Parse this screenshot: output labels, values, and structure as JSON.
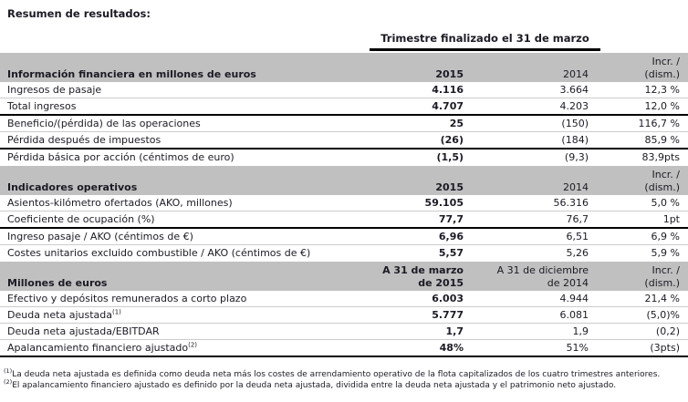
{
  "page_title": "Resumen de resultados:",
  "quarter_header": "Trimestre finalizado el 31 de marzo",
  "colors": {
    "band_gray": "#c0c0c0",
    "text": "#1b1b25",
    "separator_light": "#cccccc",
    "separator_dark": "#000000"
  },
  "sections": [
    {
      "header": {
        "label": "Información financiera en millones de euros",
        "c2015": [
          "2015"
        ],
        "c2014": [
          "2014"
        ],
        "cincr": [
          "Incr. /",
          "(dism.)"
        ]
      },
      "rows": [
        {
          "label": "Ingresos de pasaje",
          "v2015": "4.116",
          "v2014": "3.664",
          "incr": "12,3 %"
        },
        {
          "label": "Total ingresos",
          "v2015": "4.707",
          "v2014": "4.203",
          "incr": "12,0 %"
        },
        {
          "label": "Beneficio/(pérdida) de las operaciones",
          "v2015": "25",
          "v2014": "(150)",
          "incr": "116,7 %"
        },
        {
          "label": "Pérdida después de impuestos",
          "v2015": "(26)",
          "v2014": "(184)",
          "incr": "85,9 %"
        },
        {
          "label": "Pérdida básica por acción (céntimos de euro)",
          "v2015": "(1,5)",
          "v2014": "(9,3)",
          "incr": "83,9pts"
        }
      ]
    },
    {
      "header": {
        "label": "Indicadores operativos",
        "c2015": [
          "2015"
        ],
        "c2014": [
          "2014"
        ],
        "cincr": [
          "Incr. /",
          "(dism.)"
        ]
      },
      "rows": [
        {
          "label": "Asientos-kilómetro ofertados (AKO, millones)",
          "v2015": "59.105",
          "v2014": "56.316",
          "incr": "5,0 %"
        },
        {
          "label": "Coeficiente de ocupación (%)",
          "v2015": "77,7",
          "v2014": "76,7",
          "incr": "1pt"
        },
        {
          "label": "Ingreso pasaje / AKO (céntimos de €)",
          "v2015": "6,96",
          "v2014": "6,51",
          "incr": "6,9 %"
        },
        {
          "label": "Costes unitarios excluido combustible / AKO (céntimos de €)",
          "v2015": "5,57",
          "v2014": "5,26",
          "incr": "5,9 %"
        }
      ]
    },
    {
      "header": {
        "label": "Millones de euros",
        "c2015": [
          "A 31 de marzo",
          "de 2015"
        ],
        "c2014": [
          "A 31 de diciembre",
          "de 2014"
        ],
        "cincr": [
          "Incr. /",
          "(dism.)"
        ]
      },
      "rows": [
        {
          "label": "Efectivo y depósitos remunerados a corto plazo",
          "v2015": "6.003",
          "v2014": "4.944",
          "incr": "21,4 %"
        },
        {
          "label": "Deuda neta ajustada",
          "sup": "(1)",
          "v2015": "5.777",
          "v2014": "6.081",
          "incr": "(5,0)%"
        },
        {
          "label": "Deuda neta ajustada/EBITDAR",
          "v2015": "1,7",
          "v2014": "1,9",
          "incr": "(0,2)"
        },
        {
          "label": "Apalancamiento financiero ajustado",
          "sup": "(2)",
          "v2015": "48%",
          "v2014": "51%",
          "incr": "(3pts)"
        }
      ]
    }
  ],
  "footnotes": [
    {
      "marker": "(1)",
      "text": "La deuda neta ajustada es definida como deuda neta más los costes de arrendamiento operativo de la flota capitalizados de los cuatro trimestres anteriores."
    },
    {
      "marker": "(2)",
      "text": "El apalancamiento financiero ajustado es definido por la deuda neta ajustada, dividida entre la deuda neta ajustada y el patrimonio neto ajustado."
    }
  ]
}
